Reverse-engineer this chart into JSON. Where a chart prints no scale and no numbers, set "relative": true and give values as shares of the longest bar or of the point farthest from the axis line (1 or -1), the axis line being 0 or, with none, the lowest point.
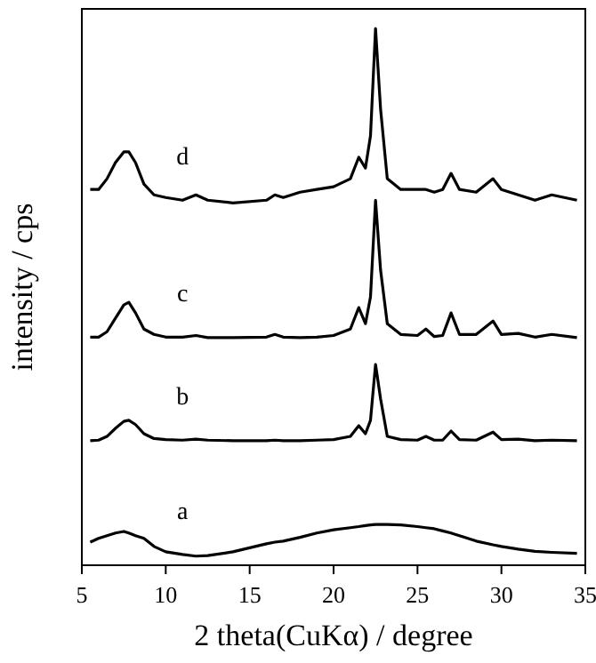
{
  "chart_data": {
    "type": "line",
    "relative": true,
    "xlabel": "2 theta(CuKα) / degree",
    "ylabel": "intensity / cps",
    "xlim": [
      5,
      35
    ],
    "xticks": [
      5,
      10,
      15,
      20,
      25,
      30,
      35
    ],
    "grid": false,
    "marker": "none",
    "line_style": "solid",
    "x": [
      5.5,
      6,
      6.5,
      7,
      7.5,
      7.8,
      8.2,
      8.7,
      9.3,
      10,
      11,
      11.8,
      12.5,
      14,
      16,
      16.5,
      17,
      18,
      19,
      20,
      21,
      21.5,
      21.9,
      22.2,
      22.5,
      22.8,
      23.2,
      24,
      25,
      25.5,
      26,
      26.5,
      27,
      27.5,
      28.5,
      29.5,
      30,
      31,
      32,
      33,
      34.5
    ],
    "series": [
      {
        "name": "a",
        "color": "#000000",
        "values": [
          0.043,
          0.05,
          0.055,
          0.06,
          0.063,
          0.06,
          0.055,
          0.05,
          0.035,
          0.025,
          0.02,
          0.017,
          0.018,
          0.025,
          0.04,
          0.043,
          0.045,
          0.052,
          0.06,
          0.066,
          0.07,
          0.072,
          0.074,
          0.075,
          0.076,
          0.076,
          0.076,
          0.075,
          0.072,
          0.07,
          0.068,
          0.064,
          0.06,
          0.055,
          0.045,
          0.038,
          0.035,
          0.03,
          0.026,
          0.024,
          0.022
        ]
      },
      {
        "name": "b",
        "color": "#000000",
        "values": [
          0.232,
          0.233,
          0.24,
          0.255,
          0.268,
          0.27,
          0.262,
          0.245,
          0.236,
          0.234,
          0.233,
          0.235,
          0.233,
          0.232,
          0.232,
          0.233,
          0.232,
          0.232,
          0.233,
          0.234,
          0.24,
          0.26,
          0.245,
          0.27,
          0.374,
          0.31,
          0.24,
          0.234,
          0.233,
          0.24,
          0.233,
          0.233,
          0.25,
          0.234,
          0.233,
          0.248,
          0.234,
          0.235,
          0.232,
          0.233,
          0.232
        ]
      },
      {
        "name": "c",
        "color": "#000000",
        "values": [
          0.425,
          0.425,
          0.435,
          0.46,
          0.485,
          0.49,
          0.47,
          0.44,
          0.43,
          0.425,
          0.425,
          0.428,
          0.424,
          0.424,
          0.425,
          0.43,
          0.425,
          0.424,
          0.425,
          0.428,
          0.44,
          0.48,
          0.45,
          0.5,
          0.68,
          0.55,
          0.45,
          0.43,
          0.428,
          0.44,
          0.426,
          0.428,
          0.47,
          0.43,
          0.43,
          0.455,
          0.43,
          0.432,
          0.425,
          0.43,
          0.424
        ]
      },
      {
        "name": "d",
        "color": "#000000",
        "values": [
          0.7,
          0.7,
          0.72,
          0.75,
          0.77,
          0.77,
          0.75,
          0.71,
          0.69,
          0.685,
          0.68,
          0.69,
          0.68,
          0.675,
          0.68,
          0.69,
          0.685,
          0.695,
          0.7,
          0.705,
          0.72,
          0.76,
          0.74,
          0.8,
          1,
          0.85,
          0.72,
          0.7,
          0.7,
          0.7,
          0.695,
          0.7,
          0.73,
          0.7,
          0.695,
          0.72,
          0.7,
          0.69,
          0.68,
          0.69,
          0.68
        ]
      }
    ]
  }
}
